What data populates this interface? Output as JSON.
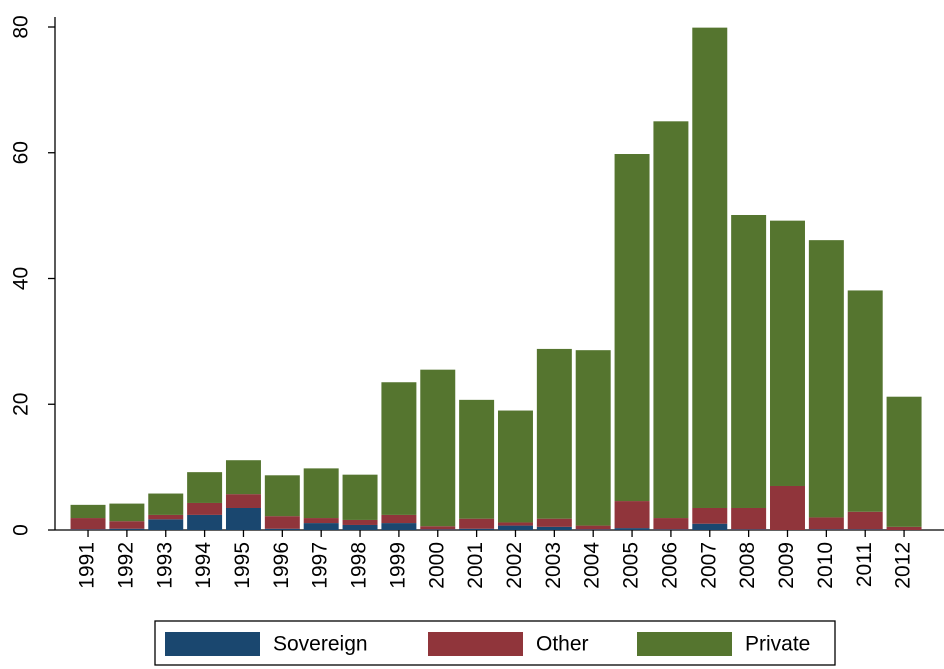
{
  "chart_data": {
    "type": "stacked_bar",
    "categories": [
      "1991",
      "1992",
      "1993",
      "1994",
      "1995",
      "1996",
      "1997",
      "1998",
      "1999",
      "2000",
      "2001",
      "2002",
      "2003",
      "2004",
      "2005",
      "2006",
      "2007",
      "2008",
      "2009",
      "2010",
      "2011",
      "2012"
    ],
    "series": [
      {
        "name": "Sovereign",
        "color": "#1a476f",
        "values": [
          0.1,
          0.2,
          1.7,
          2.4,
          3.5,
          0.2,
          1.1,
          0.8,
          1.1,
          0.1,
          0.2,
          0.7,
          0.5,
          0.1,
          0.3,
          0.1,
          1.0,
          0.1,
          0,
          0.1,
          0.1,
          0
        ]
      },
      {
        "name": "Other",
        "color": "#90353b",
        "values": [
          1.8,
          1.2,
          0.7,
          1.9,
          2.2,
          2.0,
          0.8,
          0.8,
          1.3,
          0.5,
          1.6,
          0.5,
          1.3,
          0.6,
          4.3,
          1.8,
          2.5,
          3.4,
          7.0,
          1.9,
          2.8,
          0.5
        ]
      },
      {
        "name": "Private",
        "color": "#55752f",
        "values": [
          2.1,
          2.8,
          3.4,
          4.9,
          5.4,
          6.5,
          7.9,
          7.2,
          21.1,
          24.9,
          18.9,
          17.8,
          27.0,
          27.9,
          55.2,
          63.1,
          76.4,
          46.6,
          42.2,
          44.1,
          35.2,
          20.7
        ]
      }
    ],
    "ylim": [
      0,
      80
    ],
    "yticks": [
      0,
      20,
      40,
      60,
      80
    ],
    "grid": false
  }
}
